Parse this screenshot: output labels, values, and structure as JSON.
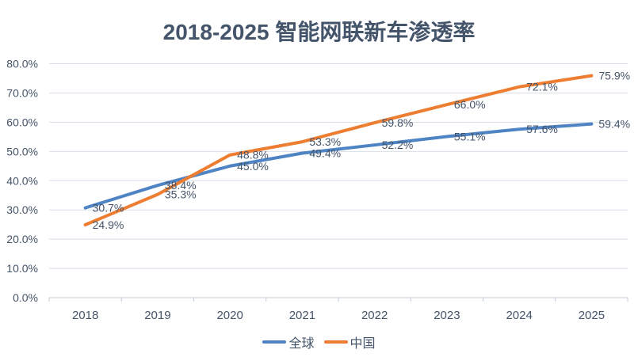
{
  "title": "2018-2025 智能网联新车渗透率",
  "palette": {
    "text": "#44546A",
    "grid": "#D8DEE8",
    "axis": "#C3CCDA",
    "background": "#FFFFFF"
  },
  "chart_data": {
    "type": "line",
    "title": "2018-2025 智能网联新车渗透率",
    "categories": [
      "2018",
      "2019",
      "2020",
      "2021",
      "2022",
      "2023",
      "2024",
      "2025"
    ],
    "series": [
      {
        "id": "global",
        "name": "全球",
        "color": "#4E84C4",
        "values": [
          30.7,
          38.4,
          45.0,
          49.4,
          52.2,
          55.1,
          57.6,
          59.4
        ]
      },
      {
        "id": "china",
        "name": "中国",
        "color": "#ED7D31",
        "values": [
          24.9,
          35.3,
          48.8,
          53.3,
          59.8,
          66.0,
          72.1,
          75.9
        ]
      }
    ],
    "ylim": [
      0,
      80
    ],
    "ytick_step": 10,
    "ytick_labels": [
      "0.0%",
      "10.0%",
      "20.0%",
      "30.0%",
      "40.0%",
      "50.0%",
      "60.0%",
      "70.0%",
      "80.0%"
    ],
    "value_suffix": "%",
    "grid": true,
    "data_labels": true,
    "legend_position": "bottom"
  }
}
